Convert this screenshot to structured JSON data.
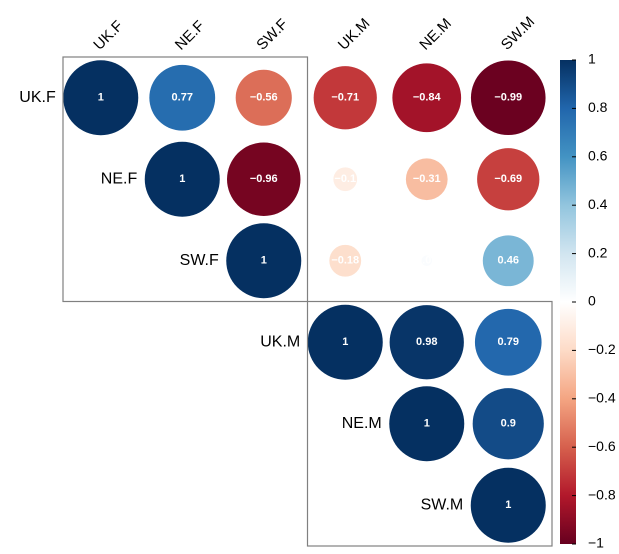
{
  "chart_data": {
    "type": "corrplot",
    "variables": [
      "UK.F",
      "NE.F",
      "SW.F",
      "UK.M",
      "NE.M",
      "SW.M"
    ],
    "values": [
      [
        1,
        0.77,
        -0.56,
        -0.71,
        -0.84,
        -0.99
      ],
      [
        null,
        1,
        -0.96,
        -0.1,
        -0.31,
        -0.69
      ],
      [
        null,
        null,
        1,
        -0.18,
        0.02,
        0.46
      ],
      [
        null,
        null,
        null,
        1,
        0.98,
        0.79
      ],
      [
        null,
        null,
        null,
        null,
        1,
        0.9
      ],
      [
        null,
        null,
        null,
        null,
        null,
        1
      ]
    ],
    "value_labels": [
      [
        "1",
        "0.77",
        "−0.56",
        "−0.71",
        "−0.84",
        "−0.99"
      ],
      [
        null,
        "1",
        "−0.96",
        "−0.1",
        "−0.31",
        "−0.69"
      ],
      [
        null,
        null,
        "1",
        "−0.18",
        "0.02",
        "0.46"
      ],
      [
        null,
        null,
        null,
        "1",
        "0.98",
        "0.79"
      ],
      [
        null,
        null,
        null,
        null,
        "1",
        "0.9"
      ],
      [
        null,
        null,
        null,
        null,
        null,
        "1"
      ]
    ],
    "clusters": [
      [
        0,
        2
      ],
      [
        3,
        5
      ]
    ],
    "colorlim": [
      -1,
      1
    ],
    "colorticks": [
      1,
      0.8,
      0.6,
      0.4,
      0.2,
      0,
      {
        "value": -0.2,
        "label": "−0.2"
      },
      {
        "value": -0.4,
        "label": "−0.4"
      },
      {
        "value": -0.6,
        "label": "−0.6"
      },
      {
        "value": -0.8,
        "label": "−0.8"
      },
      {
        "value": -1,
        "label": "−1"
      }
    ],
    "colormap": [
      "#67001f",
      "#b2182b",
      "#d6604d",
      "#f4a582",
      "#fddbc7",
      "#ffffff",
      "#d1e5f0",
      "#92c5de",
      "#4393c3",
      "#2166ac",
      "#053061"
    ]
  }
}
